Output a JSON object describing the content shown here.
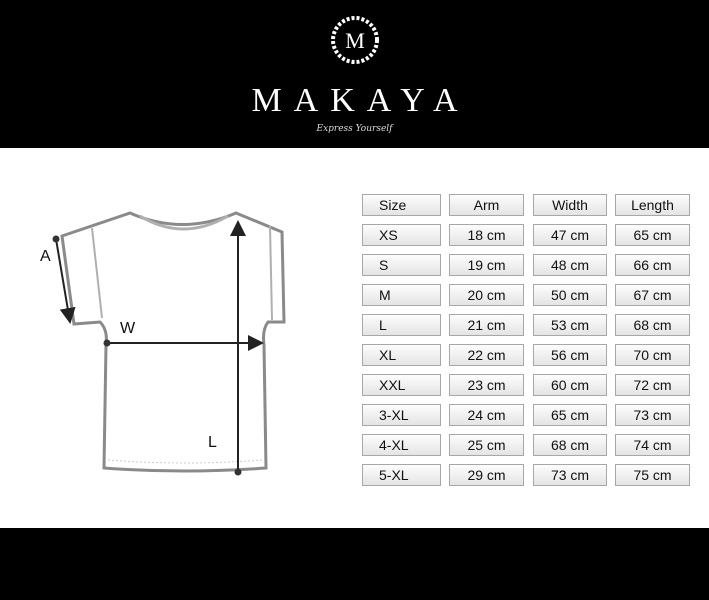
{
  "header": {
    "brand": "MAKAYA",
    "logo_letter": "M",
    "tagline": "Express Yourself",
    "background": "#000000"
  },
  "diagram": {
    "labels": {
      "arm": "A",
      "width": "W",
      "length": "L"
    }
  },
  "table": {
    "columns": [
      "Size",
      "Arm",
      "Width",
      "Length"
    ],
    "rows": [
      [
        "XS",
        "18 cm",
        "47 cm",
        "65 cm"
      ],
      [
        "S",
        "19 cm",
        "48 cm",
        "66 cm"
      ],
      [
        "M",
        "20 cm",
        "50 cm",
        "67 cm"
      ],
      [
        "L",
        "21 cm",
        "53 cm",
        "68 cm"
      ],
      [
        "XL",
        "22 cm",
        "56 cm",
        "70 cm"
      ],
      [
        "XXL",
        "23 cm",
        "60 cm",
        "72 cm"
      ],
      [
        "3-XL",
        "24 cm",
        "65 cm",
        "73 cm"
      ],
      [
        "4-XL",
        "25 cm",
        "68 cm",
        "74 cm"
      ],
      [
        "5-XL",
        "29 cm",
        "73 cm",
        "75 cm"
      ]
    ]
  }
}
